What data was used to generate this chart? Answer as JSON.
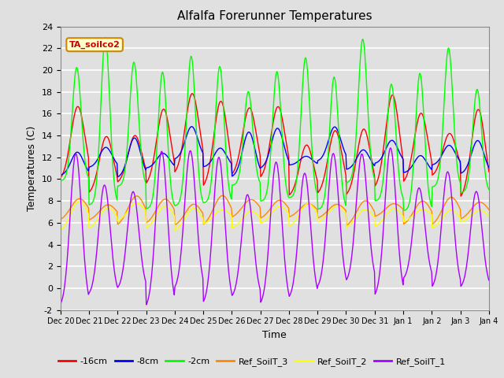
{
  "title": "Alfalfa Forerunner Temperatures",
  "xlabel": "Time",
  "ylabel": "Temperatures (C)",
  "ylim": [
    -2,
    24
  ],
  "yticks": [
    -2,
    0,
    2,
    4,
    6,
    8,
    10,
    12,
    14,
    16,
    18,
    20,
    22,
    24
  ],
  "plot_bg_color": "#e0e0e0",
  "grid_color": "#ffffff",
  "series": [
    {
      "label": "-16cm",
      "color": "#ff0000"
    },
    {
      "label": "-8cm",
      "color": "#0000ff"
    },
    {
      "label": "-2cm",
      "color": "#00ff00"
    },
    {
      "label": "Ref_SoilT_3",
      "color": "#ff8800"
    },
    {
      "label": "Ref_SoilT_2",
      "color": "#ffff00"
    },
    {
      "label": "Ref_SoilT_1",
      "color": "#aa00ff"
    }
  ],
  "xtick_labels": [
    "Dec 20",
    "Dec 21",
    "Dec 22",
    "Dec 23",
    "Dec 24",
    "Dec 25",
    "Dec 26",
    "Dec 27",
    "Dec 28",
    "Dec 29",
    "Dec 30",
    "Dec 31",
    "Jan 1",
    "Jan 2",
    "Jan 3",
    "Jan 4"
  ],
  "annotation_text": "TA_soilco2",
  "annotation_color": "#cc0000",
  "annotation_bg": "#ffffcc",
  "annotation_border": "#cc8800",
  "n_days": 15,
  "pts_per_day": 48,
  "seed": 42
}
